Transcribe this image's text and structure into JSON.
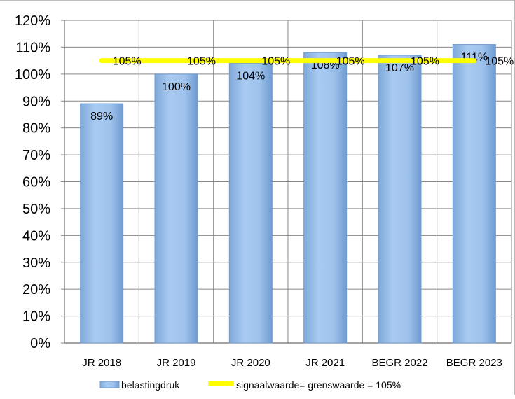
{
  "chart_data": {
    "type": "bar",
    "categories": [
      "JR 2018",
      "JR 2019",
      "JR 2020",
      "JR 2021",
      "BEGR 2022",
      "BEGR 2023"
    ],
    "series": [
      {
        "name": "belastingdruk",
        "kind": "bar",
        "values": [
          89,
          100,
          104,
          108,
          107,
          111
        ],
        "data_labels": [
          "89%",
          "100%",
          "104%",
          "108%",
          "107%",
          "111%"
        ],
        "color": "#9cc3ef"
      },
      {
        "name": "signaalwaarde= grenswaarde = 105%",
        "kind": "line",
        "values": [
          105,
          105,
          105,
          105,
          105,
          105
        ],
        "data_labels": [
          "105%",
          "105%",
          "105%",
          "105%",
          "105%",
          "105%"
        ],
        "color": "#ffff00"
      }
    ],
    "ylim": [
      0,
      120
    ],
    "yticks": [
      "0%",
      "10%",
      "20%",
      "30%",
      "40%",
      "50%",
      "60%",
      "70%",
      "80%",
      "90%",
      "100%",
      "110%",
      "120%"
    ],
    "grid": true,
    "legend_position": "bottom",
    "title": "",
    "xlabel": "",
    "ylabel": ""
  }
}
